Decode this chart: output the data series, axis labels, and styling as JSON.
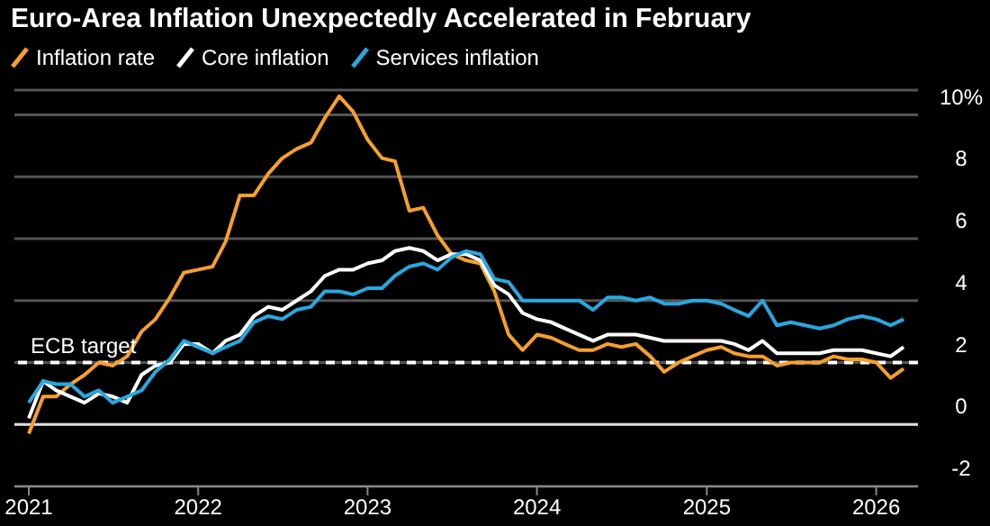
{
  "chart_data": {
    "type": "line",
    "title": "Euro-Area Inflation Unexpectedly Accelerated in February",
    "x": [
      "2021-01",
      "2021-02",
      "2021-03",
      "2021-04",
      "2021-05",
      "2021-06",
      "2021-07",
      "2021-08",
      "2021-09",
      "2021-10",
      "2021-11",
      "2021-12",
      "2022-01",
      "2022-02",
      "2022-03",
      "2022-04",
      "2022-05",
      "2022-06",
      "2022-07",
      "2022-08",
      "2022-09",
      "2022-10",
      "2022-11",
      "2022-12",
      "2023-01",
      "2023-02",
      "2023-03",
      "2023-04",
      "2023-05",
      "2023-06",
      "2023-07",
      "2023-08",
      "2023-09",
      "2023-10",
      "2023-11",
      "2023-12",
      "2024-01",
      "2024-02",
      "2024-03",
      "2024-04",
      "2024-05",
      "2024-06",
      "2024-07",
      "2024-08",
      "2024-09",
      "2024-10",
      "2024-11",
      "2024-12",
      "2025-01",
      "2025-02",
      "2025-03",
      "2025-04",
      "2025-05",
      "2025-06",
      "2025-07",
      "2025-08",
      "2025-09",
      "2025-10",
      "2025-11",
      "2025-12",
      "2026-01",
      "2026-02",
      "2026-03"
    ],
    "series": [
      {
        "name": "Inflation rate",
        "color": "#f5a02a",
        "values": [
          -0.3,
          0.9,
          0.9,
          1.3,
          1.6,
          2.0,
          1.9,
          2.2,
          3.0,
          3.4,
          4.1,
          4.9,
          5.0,
          5.1,
          5.9,
          7.4,
          7.4,
          8.1,
          8.6,
          8.9,
          9.1,
          9.9,
          10.6,
          10.1,
          9.2,
          8.6,
          8.5,
          6.9,
          7.0,
          6.1,
          5.5,
          5.3,
          5.2,
          4.3,
          2.9,
          2.4,
          2.9,
          2.8,
          2.6,
          2.4,
          2.4,
          2.6,
          2.5,
          2.6,
          2.2,
          1.7,
          2.0,
          2.2,
          2.4,
          2.5,
          2.3,
          2.2,
          2.2,
          1.9,
          2.0,
          2.0,
          2.0,
          2.2,
          2.1,
          2.1,
          2.0,
          1.5,
          1.8
        ]
      },
      {
        "name": "Core inflation",
        "color": "#ffffff",
        "values": [
          0.2,
          1.4,
          1.1,
          0.9,
          0.7,
          1.0,
          0.9,
          0.7,
          1.6,
          1.9,
          2.0,
          2.6,
          2.6,
          2.3,
          2.7,
          2.9,
          3.5,
          3.8,
          3.7,
          4.0,
          4.3,
          4.8,
          5.0,
          5.0,
          5.2,
          5.3,
          5.6,
          5.7,
          5.6,
          5.3,
          5.5,
          5.5,
          5.3,
          4.5,
          4.2,
          3.6,
          3.4,
          3.3,
          3.1,
          2.9,
          2.7,
          2.9,
          2.9,
          2.9,
          2.8,
          2.7,
          2.7,
          2.7,
          2.7,
          2.7,
          2.6,
          2.4,
          2.7,
          2.3,
          2.3,
          2.3,
          2.3,
          2.4,
          2.4,
          2.4,
          2.3,
          2.2,
          2.5
        ]
      },
      {
        "name": "Services inflation",
        "color": "#29a8e0",
        "values": [
          0.7,
          1.4,
          1.3,
          1.3,
          0.9,
          1.1,
          0.7,
          0.9,
          1.1,
          1.7,
          2.1,
          2.7,
          2.5,
          2.3,
          2.5,
          2.7,
          3.3,
          3.5,
          3.4,
          3.7,
          3.8,
          4.3,
          4.3,
          4.2,
          4.4,
          4.4,
          4.8,
          5.1,
          5.2,
          5.0,
          5.4,
          5.6,
          5.5,
          4.7,
          4.6,
          4.0,
          4.0,
          4.0,
          4.0,
          4.0,
          3.7,
          4.1,
          4.1,
          4.0,
          4.1,
          3.9,
          3.9,
          4.0,
          4.0,
          3.9,
          3.7,
          3.5,
          4.0,
          3.2,
          3.3,
          3.2,
          3.1,
          3.2,
          3.4,
          3.5,
          3.4,
          3.2,
          3.4
        ]
      }
    ],
    "xlim": [
      "2020-12",
      "2026-04"
    ],
    "xticks": [
      {
        "value": "2021-01",
        "label": "2021"
      },
      {
        "value": "2022-01",
        "label": "2022"
      },
      {
        "value": "2023-01",
        "label": "2023"
      },
      {
        "value": "2024-01",
        "label": "2024"
      },
      {
        "value": "2025-01",
        "label": "2025"
      },
      {
        "value": "2026-01",
        "label": "2026"
      }
    ],
    "ylim": [
      -2,
      10.8
    ],
    "yticks": [
      -2,
      0,
      2,
      4,
      6,
      8,
      {
        "value": 10,
        "label": "10%"
      }
    ],
    "ref_lines": [
      {
        "axis": "y",
        "value": 2,
        "label": "ECB target",
        "color": "#ffffff",
        "line_style": "dashed"
      }
    ],
    "grid": "y",
    "legend": "top left",
    "marker": "none",
    "line_style": "solid"
  }
}
